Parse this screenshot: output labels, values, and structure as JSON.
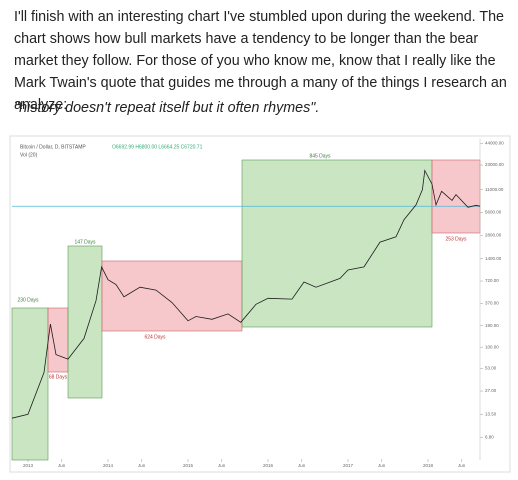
{
  "paragraph": "I'll finish with an interesting chart I've stumbled upon during the weekend. The chart shows how bull markets have a tendency to be longer than the bear market they follow. For those of you who know me, know that I really like the Mark Twain's quote that guides me through a many of the things I research an analyze:",
  "quote": "\"history doesn't repeat itself but it often rhymes\".",
  "chart_data": {
    "type": "line",
    "log_scale": true,
    "legend_title": "Bitcoin / Dollar, D, BITSTAMP",
    "legend_ohlc": "O6692.99 H6800.00 L6664.25 C6720.71",
    "volume_label": "Vol (20)",
    "series": [
      {
        "name": "BTCUSD",
        "color": "#1d1d1d",
        "x": [
          2012.8,
          2013.0,
          2013.2,
          2013.28,
          2013.35,
          2013.5,
          2013.7,
          2013.85,
          2013.92,
          2014.0,
          2014.1,
          2014.2,
          2014.4,
          2014.6,
          2014.8,
          2015.0,
          2015.1,
          2015.3,
          2015.5,
          2015.66,
          2015.85,
          2016.0,
          2016.3,
          2016.45,
          2016.6,
          2016.9,
          2017.0,
          2017.2,
          2017.4,
          2017.6,
          2017.7,
          2017.85,
          2017.93,
          2017.96,
          2018.05,
          2018.1,
          2018.17,
          2018.3,
          2018.35,
          2018.5,
          2018.6,
          2018.65
        ],
        "values": [
          12,
          13.5,
          47,
          200,
          80,
          70,
          130,
          400,
          1100,
          750,
          650,
          450,
          600,
          550,
          380,
          220,
          250,
          230,
          270,
          210,
          360,
          430,
          420,
          700,
          600,
          780,
          1000,
          1100,
          2300,
          2700,
          4500,
          7000,
          11000,
          19500,
          13000,
          7000,
          10500,
          8000,
          9500,
          6500,
          6900,
          6720.71
        ]
      }
    ],
    "last_price_line": 6720.71,
    "annotations": [
      {
        "label": "230 Days",
        "color": "#9fd08f"
      },
      {
        "label": "68 Days",
        "color": "#ee9aa3"
      },
      {
        "label": "147 Days",
        "color": "#9fd08f"
      },
      {
        "label": "624 Days",
        "color": "#ee9aa3"
      },
      {
        "label": "845 Days",
        "color": "#9fd08f"
      },
      {
        "label": "253 Days",
        "color": "#ee9aa3"
      }
    ],
    "xlim": [
      2012.8,
      2018.65
    ],
    "xticks": [
      2013,
      {
        "value": 2013.42,
        "label": "Jun"
      },
      2014,
      {
        "value": 2014.42,
        "label": "Jun"
      },
      2015,
      {
        "value": 2015.42,
        "label": "Jun"
      },
      2016,
      {
        "value": 2016.42,
        "label": "Jun"
      },
      2017,
      {
        "value": 2017.42,
        "label": "Jun"
      },
      2018,
      {
        "value": 2018.42,
        "label": "Jun"
      }
    ],
    "ylim": [
      4,
      50000
    ],
    "yticks": [
      {
        "value": 44000,
        "label": "44000.00"
      },
      {
        "value": 23000,
        "label": "23000.00"
      },
      {
        "value": 11000,
        "label": "11000.00"
      },
      {
        "value": 5600,
        "label": "5600.00"
      },
      {
        "value": 2800,
        "label": "2800.00"
      },
      {
        "value": 1400,
        "label": "1400.00"
      },
      {
        "value": 720,
        "label": "720.00"
      },
      {
        "value": 370,
        "label": "370.00"
      },
      {
        "value": 190,
        "label": "190.00"
      },
      {
        "value": 100,
        "label": "100.00"
      },
      {
        "value": 53,
        "label": "53.00"
      },
      {
        "value": 27,
        "label": "27.00"
      },
      {
        "value": 13.5,
        "label": "13.50"
      },
      {
        "value": 6.8,
        "label": "6.80"
      }
    ]
  }
}
